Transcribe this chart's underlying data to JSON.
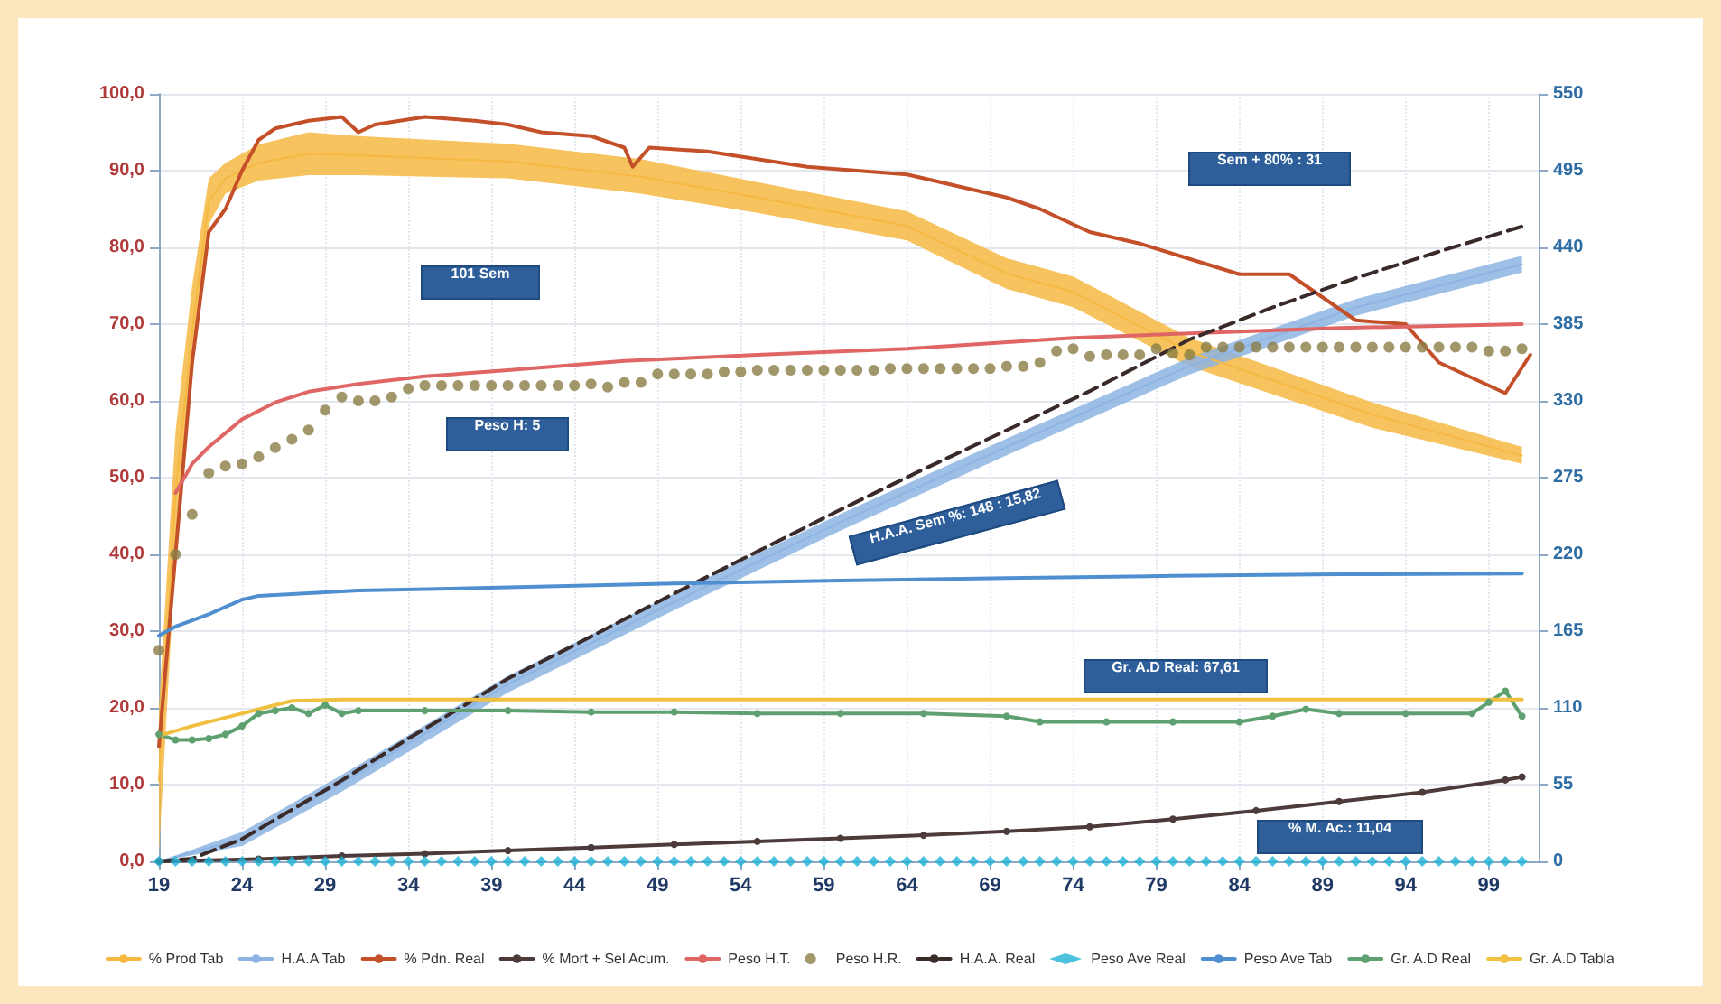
{
  "chart_data": {
    "type": "line",
    "xlim": [
      19,
      102
    ],
    "xticks": [
      19,
      24,
      29,
      34,
      39,
      44,
      49,
      54,
      59,
      64,
      69,
      74,
      79,
      84,
      89,
      94,
      99
    ],
    "ylim": [
      0,
      100
    ],
    "yticks": [
      {
        "value": 0,
        "label": "0,0"
      },
      {
        "value": 10,
        "label": "10,0"
      },
      {
        "value": 20,
        "label": "20,0"
      },
      {
        "value": 30,
        "label": "30,0"
      },
      {
        "value": 40,
        "label": "40,0"
      },
      {
        "value": 50,
        "label": "50,0"
      },
      {
        "value": 60,
        "label": "60,0"
      },
      {
        "value": 70,
        "label": "70,0"
      },
      {
        "value": 80,
        "label": "80,0"
      },
      {
        "value": 90,
        "label": "90,0"
      },
      {
        "value": 100,
        "label": "100,0"
      }
    ],
    "y2lim": [
      0,
      550
    ],
    "y2ticks": [
      0,
      55,
      110,
      165,
      220,
      275,
      330,
      385,
      440,
      495,
      550
    ],
    "grid": true,
    "legend": "bottom",
    "annotations": [
      "101 Sem",
      "Peso H: 5",
      "Sem + 80% : 31",
      "H.A.A. Sem %: 148 : 15,82",
      "Gr. A.D Real: 67,61",
      "% M. Ac.: 11,04"
    ],
    "series": [
      {
        "name": "% Prod Tab",
        "color": "#f5b942",
        "marker": "none",
        "x": [
          19,
          20,
          21,
          22,
          23,
          25,
          28,
          31,
          40,
          48,
          55,
          64,
          70,
          74,
          81,
          92,
          101
        ],
        "values": [
          10.5,
          48,
          69,
          86,
          89,
          91,
          92.2,
          92,
          91.2,
          89.2,
          86.5,
          82.8,
          76.6,
          74.2,
          66.4,
          58.2,
          52.9
        ],
        "lower": [
          1,
          40,
          63.5,
          83,
          87,
          88.7,
          89.4,
          89.4,
          89,
          87,
          84.5,
          80.9,
          74.6,
          72.2,
          64.5,
          56.5,
          51.8
        ],
        "upper": [
          20,
          56,
          75,
          89,
          91,
          93.4,
          95,
          94.5,
          93.5,
          91.5,
          88.5,
          84.7,
          78.6,
          76.2,
          68.2,
          59.8,
          54
        ]
      },
      {
        "name": "H.A.A Tab",
        "axis": "y2",
        "color": "#8db4e2",
        "marker": "none",
        "x": [
          19,
          24,
          30,
          40,
          50,
          60,
          70,
          81,
          91,
          101
        ],
        "values": [
          0,
          16,
          56,
          127,
          186,
          243,
          297,
          355,
          397,
          428
        ],
        "lower": [
          0,
          11,
          50,
          121,
          180,
          237,
          291,
          349,
          391,
          422
        ],
        "upper": [
          0,
          21,
          62,
          133,
          192,
          249,
          303,
          361,
          403,
          434
        ]
      },
      {
        "name": "% Pdn. Real",
        "color": "#c4502a",
        "marker": "none",
        "x": [
          19,
          20,
          21,
          22,
          23,
          24,
          25,
          26,
          28,
          30,
          31,
          32,
          35,
          38,
          40,
          42,
          45,
          47,
          47.5,
          48.5,
          52,
          55,
          58,
          61,
          64,
          67,
          70,
          72,
          75,
          78,
          81,
          84,
          87,
          89,
          91,
          94,
          96,
          98,
          100,
          101.5
        ],
        "values": [
          15,
          40,
          65,
          82,
          85,
          90,
          94,
          95.5,
          96.5,
          97,
          95,
          96,
          97,
          96.5,
          96,
          95,
          94.5,
          93,
          90.5,
          93,
          92.5,
          91.5,
          90.5,
          90,
          89.5,
          88,
          86.5,
          85,
          82,
          80.5,
          78.5,
          76.5,
          76.5,
          73.5,
          70.5,
          70,
          65,
          63,
          61,
          66
        ]
      },
      {
        "name": "% Mort + Sel Acum.",
        "color": "#4d3b3b",
        "marker": "circle",
        "x": [
          19,
          25,
          30,
          35,
          40,
          45,
          50,
          55,
          60,
          65,
          70,
          75,
          80,
          85,
          90,
          95,
          100,
          101
        ],
        "values": [
          0,
          0.3,
          0.7,
          1,
          1.4,
          1.8,
          2.2,
          2.6,
          3,
          3.4,
          3.9,
          4.5,
          5.5,
          6.6,
          7.8,
          9,
          10.6,
          11
        ]
      },
      {
        "name": "Peso H.T.",
        "color": "#e06666",
        "marker": "none",
        "x": [
          20,
          21,
          22,
          24,
          26,
          28,
          31,
          35,
          40,
          47,
          55,
          64,
          74,
          81,
          90,
          101
        ],
        "values": [
          48,
          51.8,
          54,
          57.6,
          59.8,
          61.2,
          62.2,
          63.2,
          64,
          65.2,
          66,
          66.8,
          68.2,
          68.8,
          69.5,
          70
        ]
      },
      {
        "name": "Peso H.R.",
        "type": "scatter",
        "color": "#8a7d45",
        "marker": "circle",
        "x": [
          19,
          20,
          21,
          22,
          23,
          24,
          25,
          26,
          27,
          28,
          29,
          30,
          31,
          32,
          33,
          34,
          35,
          36,
          37,
          38,
          39,
          40,
          41,
          42,
          43,
          44,
          45,
          46,
          47,
          48,
          49,
          50,
          51,
          52,
          53,
          54,
          55,
          56,
          57,
          58,
          59,
          60,
          61,
          62,
          63,
          64,
          65,
          66,
          67,
          68,
          69,
          70,
          71,
          72,
          73,
          74,
          75,
          76,
          77,
          78,
          79,
          80,
          81,
          82,
          83,
          84,
          85,
          86,
          87,
          88,
          89,
          90,
          91,
          92,
          93,
          94,
          95,
          96,
          97,
          98,
          99,
          100,
          101
        ],
        "values": [
          27.5,
          40,
          45.2,
          50.6,
          51.5,
          51.8,
          52.7,
          53.9,
          55,
          56.2,
          58.8,
          60.5,
          60,
          60,
          60.5,
          61.6,
          62,
          62,
          62,
          62,
          62,
          62,
          62,
          62,
          62,
          62,
          62.2,
          61.8,
          62.4,
          62.4,
          63.5,
          63.5,
          63.5,
          63.5,
          63.8,
          63.8,
          64,
          64,
          64,
          64,
          64,
          64,
          64,
          64,
          64.2,
          64.2,
          64.2,
          64.2,
          64.2,
          64.2,
          64.2,
          64.5,
          64.5,
          65,
          66.5,
          66.8,
          65.8,
          66,
          66,
          66,
          66.8,
          66.2,
          66,
          67,
          67,
          67,
          67,
          67,
          67,
          67,
          67,
          67,
          67,
          67,
          67,
          67,
          67,
          67,
          67,
          67,
          66.5,
          66.5,
          66.8
        ]
      },
      {
        "name": "H.A.A. Real",
        "axis": "y2",
        "color": "#3a2a2a",
        "marker": "none",
        "line_style": "dashed",
        "x": [
          19,
          21,
          24,
          27,
          30,
          34,
          37,
          40,
          44,
          50,
          55,
          60,
          65,
          70,
          75,
          81,
          86,
          91,
          96,
          101
        ],
        "values": [
          0,
          2,
          16,
          37,
          58,
          88,
          109,
          131,
          155,
          192,
          222,
          252,
          281,
          309,
          337,
          374,
          397,
          418,
          437,
          455
        ]
      },
      {
        "name": "Peso Ave Real",
        "type": "scatter",
        "color": "#1fb3d6",
        "marker": "diamond",
        "x": [
          19,
          20,
          21,
          22,
          23,
          24,
          25,
          26,
          27,
          28,
          29,
          30,
          31,
          32,
          33,
          34,
          35,
          36,
          37,
          38,
          39,
          40,
          41,
          42,
          43,
          44,
          45,
          46,
          47,
          48,
          49,
          50,
          51,
          52,
          53,
          54,
          55,
          56,
          57,
          58,
          59,
          60,
          61,
          62,
          63,
          64,
          65,
          66,
          67,
          68,
          69,
          70,
          71,
          72,
          73,
          74,
          75,
          76,
          77,
          78,
          79,
          80,
          81,
          82,
          83,
          84,
          85,
          86,
          87,
          88,
          89,
          90,
          91,
          92,
          93,
          94,
          95,
          96,
          97,
          98,
          99,
          100,
          101
        ],
        "values": [
          0,
          0,
          0,
          0,
          0,
          0,
          0,
          0,
          0,
          0,
          0,
          0,
          0,
          0,
          0,
          0,
          0,
          0,
          0,
          0,
          0,
          0,
          0,
          0,
          0,
          0,
          0,
          0,
          0,
          0,
          0,
          0,
          0,
          0,
          0,
          0,
          0,
          0,
          0,
          0,
          0,
          0,
          0,
          0,
          0,
          0,
          0,
          0,
          0,
          0,
          0,
          0,
          0,
          0,
          0,
          0,
          0,
          0,
          0,
          0,
          0,
          0,
          0,
          0,
          0,
          0,
          0,
          0,
          0,
          0,
          0,
          0,
          0,
          0,
          0,
          0,
          0,
          0,
          0,
          0,
          0,
          0,
          0
        ]
      },
      {
        "name": "Peso Ave Tab",
        "color": "#4f8fd0",
        "marker": "none",
        "x": [
          19,
          20,
          22,
          24,
          25,
          31,
          40,
          50,
          60,
          70,
          80,
          90,
          101
        ],
        "values": [
          29.4,
          30.6,
          32.2,
          34.1,
          34.6,
          35.3,
          35.7,
          36.2,
          36.6,
          36.9,
          37.2,
          37.4,
          37.5
        ]
      },
      {
        "name": "Gr. A.D Real",
        "axis": "y2",
        "color": "#5fa070",
        "marker": "circle",
        "x": [
          19,
          20,
          21,
          22,
          23,
          24,
          25,
          26,
          27,
          28,
          29,
          30,
          31,
          35,
          40,
          45,
          50,
          55,
          60,
          65,
          70,
          72,
          76,
          80,
          84,
          86,
          88,
          90,
          94,
          98,
          99,
          100,
          101
        ],
        "values": [
          91,
          87,
          87,
          88,
          91,
          97,
          106,
          108,
          110,
          106,
          112,
          106,
          108,
          108,
          108,
          107,
          107,
          106,
          106,
          106,
          104,
          100,
          100,
          100,
          100,
          104,
          109,
          106,
          106,
          106,
          114,
          122,
          104
        ]
      },
      {
        "name": "Gr. A.D Tabla",
        "axis": "y2",
        "color": "#f0c040",
        "marker": "none",
        "x": [
          19,
          21,
          23,
          25,
          27,
          30,
          40,
          50,
          60,
          70,
          80,
          90,
          98,
          101
        ],
        "values": [
          90,
          97,
          103,
          109,
          115,
          116,
          116,
          116,
          116,
          116,
          116,
          116,
          116,
          116
        ]
      }
    ]
  }
}
